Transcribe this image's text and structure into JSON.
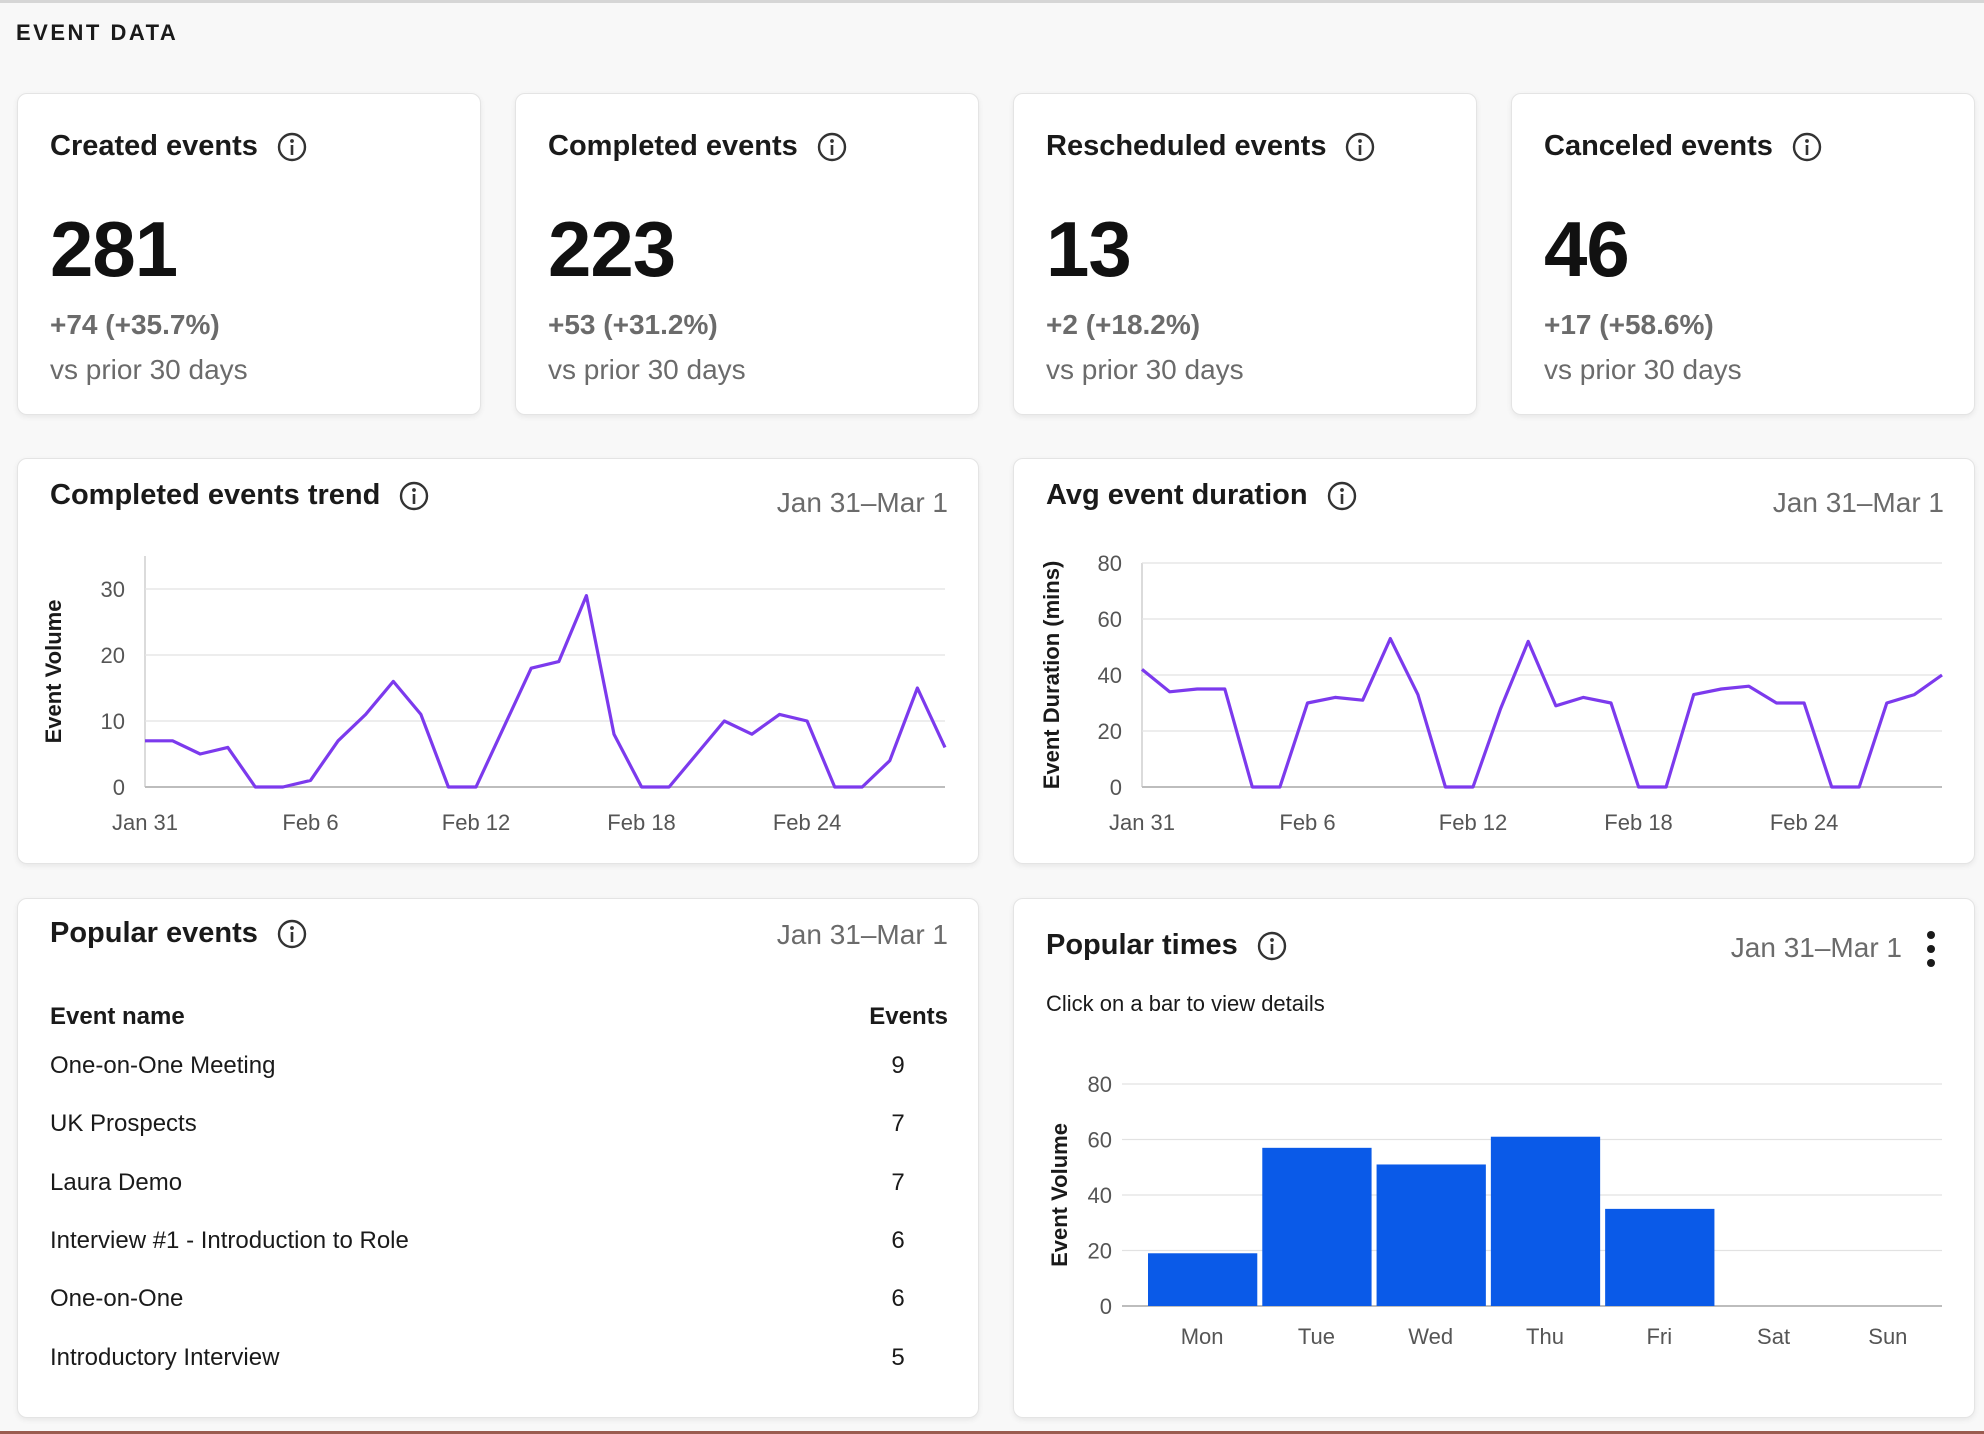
{
  "section_title": "EVENT DATA",
  "metrics": [
    {
      "title": "Created events",
      "value": "281",
      "delta": "+74 (+35.7%)",
      "sub": "vs prior 30 days"
    },
    {
      "title": "Completed events",
      "value": "223",
      "delta": "+53 (+31.2%)",
      "sub": "vs prior 30 days"
    },
    {
      "title": "Rescheduled events",
      "value": "13",
      "delta": "+2 (+18.2%)",
      "sub": "vs prior 30 days"
    },
    {
      "title": "Canceled events",
      "value": "46",
      "delta": "+17 (+58.6%)",
      "sub": "vs prior 30 days"
    }
  ],
  "trend_card": {
    "title": "Completed events trend",
    "date_range": "Jan 31–Mar 1"
  },
  "duration_card": {
    "title": "Avg event duration",
    "date_range": "Jan 31–Mar 1"
  },
  "popular_events": {
    "title": "Popular events",
    "date_range": "Jan 31–Mar 1",
    "col_name": "Event name",
    "col_events": "Events",
    "rows": [
      {
        "name": "One-on-One Meeting",
        "count": "9"
      },
      {
        "name": "UK Prospects",
        "count": "7"
      },
      {
        "name": "Laura Demo",
        "count": "7"
      },
      {
        "name": "Interview #1 - Introduction to Role",
        "count": "6"
      },
      {
        "name": "One-on-One",
        "count": "6"
      },
      {
        "name": "Introductory Interview",
        "count": "5"
      }
    ]
  },
  "popular_times": {
    "title": "Popular times",
    "date_range": "Jan 31–Mar 1",
    "subtitle": "Click on a bar to view details"
  },
  "colors": {
    "line": "#7c3aed",
    "bar": "#0a5ae8",
    "grid": "#e2e2e2",
    "axis_text": "#555555"
  },
  "icons": [
    "info-icon",
    "kebab-menu-icon"
  ],
  "chart_data": [
    {
      "type": "line",
      "ylabel": "Event Volume",
      "xlabel": "",
      "x_ticks": [
        "Jan 31",
        "Feb 6",
        "Feb 12",
        "Feb 18",
        "Feb 24"
      ],
      "y_ticks": [
        0,
        10,
        20,
        30
      ],
      "ylim": [
        0,
        35
      ],
      "x": [
        "Jan 31",
        "Feb 1",
        "Feb 2",
        "Feb 3",
        "Feb 4",
        "Feb 5",
        "Feb 6",
        "Feb 7",
        "Feb 8",
        "Feb 9",
        "Feb 10",
        "Feb 11",
        "Feb 12",
        "Feb 13",
        "Feb 14",
        "Feb 15",
        "Feb 16",
        "Feb 17",
        "Feb 18",
        "Feb 19",
        "Feb 20",
        "Feb 21",
        "Feb 22",
        "Feb 23",
        "Feb 24",
        "Feb 25",
        "Feb 26",
        "Feb 27",
        "Feb 28",
        "Mar 1"
      ],
      "series": [
        {
          "values": [
            7,
            7,
            5,
            6,
            0,
            0,
            1,
            7,
            11,
            16,
            11,
            0,
            0,
            9,
            18,
            19,
            29,
            8,
            0,
            0,
            5,
            10,
            8,
            11,
            10,
            0,
            0,
            4,
            15,
            6
          ]
        }
      ]
    },
    {
      "type": "line",
      "ylabel": "Event Duration (mins)",
      "xlabel": "",
      "x_ticks": [
        "Jan 31",
        "Feb 6",
        "Feb 12",
        "Feb 18",
        "Feb 24"
      ],
      "y_ticks": [
        0,
        20,
        40,
        60,
        80
      ],
      "ylim": [
        0,
        80
      ],
      "x": [
        "Jan 31",
        "Feb 1",
        "Feb 2",
        "Feb 3",
        "Feb 4",
        "Feb 5",
        "Feb 6",
        "Feb 7",
        "Feb 8",
        "Feb 9",
        "Feb 10",
        "Feb 11",
        "Feb 12",
        "Feb 13",
        "Feb 14",
        "Feb 15",
        "Feb 16",
        "Feb 17",
        "Feb 18",
        "Feb 19",
        "Feb 20",
        "Feb 21",
        "Feb 22",
        "Feb 23",
        "Feb 24",
        "Feb 25",
        "Feb 26",
        "Feb 27",
        "Feb 28",
        "Mar 1"
      ],
      "series": [
        {
          "values": [
            42,
            34,
            35,
            35,
            0,
            0,
            30,
            32,
            31,
            53,
            33,
            0,
            0,
            28,
            52,
            29,
            32,
            30,
            0,
            0,
            33,
            35,
            36,
            30,
            30,
            0,
            0,
            30,
            33,
            40
          ]
        }
      ]
    },
    {
      "type": "bar",
      "ylabel": "Event Volume",
      "xlabel": "",
      "categories": [
        "Mon",
        "Tue",
        "Wed",
        "Thu",
        "Fri",
        "Sat",
        "Sun"
      ],
      "values": [
        19,
        57,
        51,
        61,
        35,
        0,
        0
      ],
      "y_ticks": [
        0,
        20,
        40,
        60,
        80
      ],
      "ylim": [
        0,
        80
      ]
    }
  ]
}
